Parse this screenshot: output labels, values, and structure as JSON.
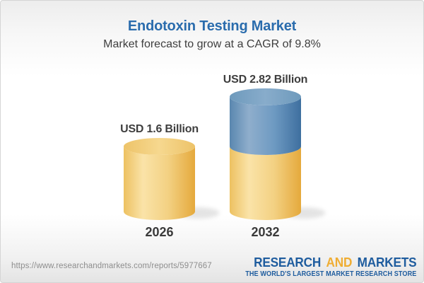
{
  "header": {
    "title": "Endotoxin Testing Market",
    "subtitle": "Market forecast to grow at a CAGR of 9.8%"
  },
  "chart_data": {
    "type": "bar",
    "variant": "3d-cylinder-stacked",
    "categories": [
      "2026",
      "2032"
    ],
    "values": [
      1.6,
      2.82
    ],
    "value_labels": [
      "USD 1.6 Billion",
      "USD 2.82 Billion"
    ],
    "unit": "USD Billion",
    "baseline_value": 1.6,
    "legend": "none",
    "grid": "off",
    "colors": {
      "base_body_stops": [
        "#edc161",
        "#fae3a8",
        "#f3d183",
        "#e5a93c"
      ],
      "base_top_stops": [
        "#edc369",
        "#f6d88f",
        "#edc369"
      ],
      "growth_body_stops": [
        "#5a87af",
        "#8faecc",
        "#6e9ac2",
        "#3e6f9f"
      ],
      "growth_top_stops": [
        "#6e9abc",
        "#88accb",
        "#6e9abc"
      ],
      "shadow": "#c4c4c4",
      "label": "#3e3e3e",
      "title": "#2a6cad"
    }
  },
  "footer": {
    "url": "https://www.researchandmarkets.com/reports/5977667",
    "logo": {
      "word1": "RESEARCH",
      "word2": "AND",
      "word3": "MARKETS",
      "tagline": "THE WORLD'S LARGEST MARKET RESEARCH STORE",
      "blue": "#1e5c9e",
      "gold": "#efad33"
    }
  }
}
